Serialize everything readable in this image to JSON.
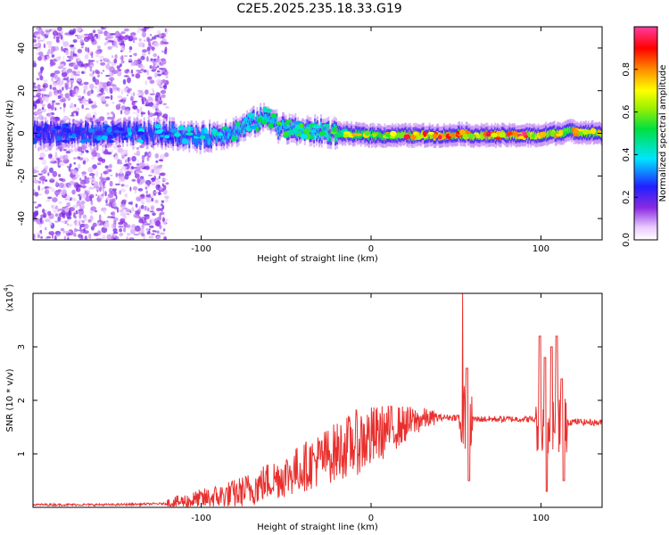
{
  "title": "C2E5.2025.235.18.33.G19",
  "colors": {
    "snr_line": "#e8302e",
    "frame": "#000000"
  },
  "chart_data": [
    {
      "type": "heatmap",
      "xlabel": "Height of straight line (km)",
      "ylabel": "Frequency (Hz)",
      "xlim": [
        -199,
        136
      ],
      "ylim": [
        -50,
        50
      ],
      "x_ticks": [
        -100,
        0,
        100
      ],
      "y_ticks": [
        -40,
        -20,
        0,
        20,
        40
      ],
      "colorbar": {
        "label": "Normalized spectral amplitude",
        "range": [
          0,
          1
        ],
        "ticks": [
          "0.0",
          "0.2",
          "0.4",
          "0.6",
          "0.8"
        ],
        "colormap": "rainbow (white-violet-blue-cyan-green-yellow-orange-red-pink)"
      },
      "ridge": {
        "height_km": [
          -199,
          -150,
          -120,
          -100,
          -80,
          -70,
          -60,
          -55,
          -50,
          -40,
          -30,
          -20,
          0,
          20,
          40,
          48,
          50,
          60,
          80,
          100,
          105,
          110,
          115,
          136
        ],
        "frequency_hz": [
          0,
          0,
          0,
          -2,
          1,
          5,
          8,
          3,
          2,
          1,
          1,
          0,
          -1,
          -1,
          -1,
          -1,
          0,
          -1,
          -1,
          -1,
          0,
          0,
          1,
          0
        ],
        "peak_amplitude": [
          0.3,
          0.35,
          0.4,
          0.45,
          0.5,
          0.55,
          0.5,
          0.55,
          0.55,
          0.55,
          0.6,
          0.7,
          0.8,
          0.9,
          0.95,
          0.85,
          0.9,
          0.95,
          0.95,
          0.95,
          0.9,
          0.9,
          0.85,
          0.85
        ]
      },
      "noise_region_km": [
        -199,
        -120
      ]
    },
    {
      "type": "line",
      "xlabel": "Height of straight line (km)",
      "ylabel": "SNR (10 * v/v)",
      "y_multiplier": "(x10",
      "y_multiplier_exp": "4",
      "xlim": [
        -199,
        136
      ],
      "ylim": [
        0,
        4
      ],
      "x_ticks": [
        -100,
        0,
        100
      ],
      "y_ticks": [
        1,
        2,
        3
      ],
      "series": [
        {
          "envelope_x": [
            -199,
            -150,
            -120,
            -100,
            -90,
            -80,
            -70,
            -60,
            -50,
            -40,
            -30,
            -20,
            -10,
            0,
            10,
            20,
            30,
            40,
            48,
            55,
            57,
            60,
            70,
            80,
            90,
            95,
            100,
            105,
            110,
            115,
            118,
            120,
            136
          ],
          "envelope_y": [
            0.05,
            0.05,
            0.07,
            0.15,
            0.2,
            0.25,
            0.35,
            0.5,
            0.6,
            0.75,
            0.9,
            1.05,
            1.2,
            1.3,
            1.45,
            1.55,
            1.65,
            1.68,
            1.68,
            1.7,
            1.65,
            1.65,
            1.65,
            1.65,
            1.65,
            1.65,
            1.6,
            1.6,
            1.6,
            1.6,
            1.6,
            1.6,
            1.58
          ],
          "spikes": [
            {
              "x": 55,
              "high": 4.0,
              "low": 0.3
            },
            {
              "x": 57,
              "high": 2.6,
              "low": 0.5
            },
            {
              "x": 100,
              "high": 3.2,
              "low": 0.1
            },
            {
              "x": 103,
              "high": 2.8,
              "low": 0.3
            },
            {
              "x": 107,
              "high": 3.0,
              "low": 0.6
            },
            {
              "x": 110,
              "high": 3.2,
              "low": 0.15
            },
            {
              "x": 113,
              "high": 2.4,
              "low": 0.5
            }
          ]
        }
      ]
    }
  ]
}
